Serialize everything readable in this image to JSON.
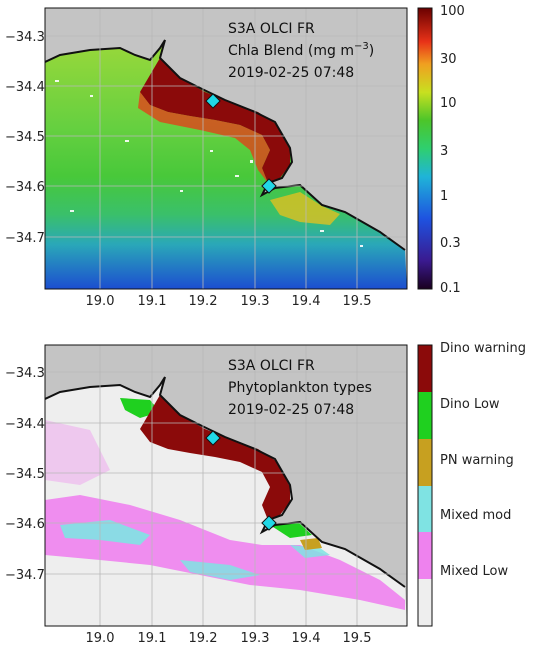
{
  "colors": {
    "land": "#c4c4c4",
    "coast": "#111111",
    "low_green": "#4cc52a",
    "dark_red": "#8b0a0a",
    "station_marker": "#21d8e6",
    "empty": "#eeeeee",
    "blue": "#1a4fcf"
  },
  "top_panel": {
    "annotation": {
      "line1": "S3A OLCI FR",
      "line2": "Chla Blend (mg m",
      "line2_sup": "−3",
      "line2_end": ")",
      "line3": "2019-02-25 07:48"
    },
    "ytick_labels": [
      "−34.3",
      "−34.4",
      "−34.5",
      "−34.6",
      "−34.7"
    ],
    "xtick_labels": [
      "19.0",
      "19.1",
      "19.2",
      "19.3",
      "19.4",
      "19.5"
    ],
    "colorbar": {
      "scale": "log",
      "tick_labels": [
        "100",
        "30",
        "10",
        "3",
        "1",
        "0.3",
        "0.1"
      ],
      "colormap": "jet-like (purple-blue-cyan-green-yellow-orange-red-darkred)"
    }
  },
  "bottom_panel": {
    "annotation": {
      "line1": "S3A OLCI FR",
      "line2": "Phytoplankton types",
      "line3": "2019-02-25 07:48"
    },
    "ytick_labels": [
      "−34.3",
      "−34.4",
      "−34.5",
      "−34.6",
      "−34.7"
    ],
    "xtick_labels": [
      "19.0",
      "19.1",
      "19.2",
      "19.3",
      "19.4",
      "19.5"
    ],
    "legend_classes": [
      {
        "label": "Dino warning",
        "color": "#8b0a0a"
      },
      {
        "label": "Dino Low",
        "color": "#1fd01f"
      },
      {
        "label": "PN warning",
        "color": "#c7a020"
      },
      {
        "label": "Mixed mod",
        "color": "#7fe3e3"
      },
      {
        "label": "Mixed Low",
        "color": "#ee82ee"
      },
      {
        "label": "",
        "color": "#eeeeee"
      }
    ]
  },
  "stations": [
    {
      "lon": 19.22,
      "lat": -34.432
    },
    {
      "lon": 19.33,
      "lat": -34.598
    }
  ],
  "map_extent": {
    "lon": [
      18.9,
      19.6
    ],
    "lat": [
      -34.8,
      -34.25
    ]
  }
}
